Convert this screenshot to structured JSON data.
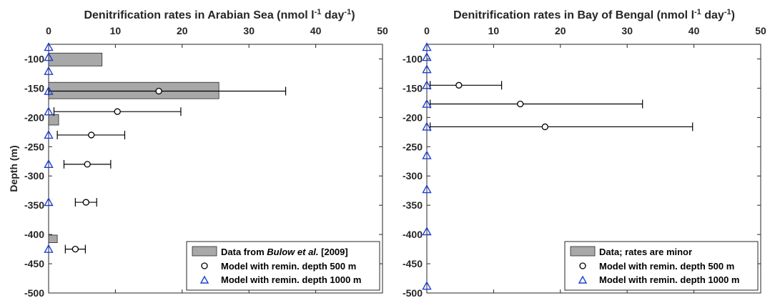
{
  "chart_data": [
    {
      "type": "bar",
      "orientation": "horizontal",
      "title": "Denitrification rates in Arabian Sea (nmol l",
      "title_sup": "-1",
      "title_mid": " day",
      "title_sup2": "-1",
      "title_end": ")",
      "ylabel": "Depth (m)",
      "xlim": [
        0,
        50
      ],
      "ylim": [
        -500,
        -75
      ],
      "x_axis_location": "top",
      "xticks": [
        "0",
        "10",
        "20",
        "30",
        "40",
        "50"
      ],
      "yticks": [
        "-100",
        "-150",
        "-200",
        "-250",
        "-300",
        "-350",
        "-400",
        "-450",
        "-500"
      ],
      "legend_location": "bottom-right",
      "colors": {
        "bar": "#a8a8a8",
        "model_500": "#000000",
        "model_1000": "#1f3fd6"
      },
      "series": [
        {
          "name": "Data from Bulow et al. [2009]",
          "kind": "bar",
          "bars": [
            {
              "depth_top": -90,
              "depth_bottom": -112,
              "value": 8
            },
            {
              "depth_top": -140,
              "depth_bottom": -168,
              "value": 25.5
            },
            {
              "depth_top": -195,
              "depth_bottom": -213,
              "value": 1.5
            },
            {
              "depth_top": -401,
              "depth_bottom": -414,
              "value": 1.3
            }
          ]
        },
        {
          "name": "Model with remin. depth 500 m",
          "kind": "errorbar",
          "points": [
            {
              "depth": -155,
              "mean": 16.5,
              "low": 0,
              "high": 35.5
            },
            {
              "depth": -190,
              "mean": 10.3,
              "low": 0.8,
              "high": 19.8
            },
            {
              "depth": -230,
              "mean": 6.4,
              "low": 1.3,
              "high": 11.4
            },
            {
              "depth": -280,
              "mean": 5.8,
              "low": 2.3,
              "high": 9.3
            },
            {
              "depth": -345,
              "mean": 5.6,
              "low": 4.0,
              "high": 7.2
            },
            {
              "depth": -425,
              "mean": 4.0,
              "low": 2.5,
              "high": 5.5
            }
          ]
        },
        {
          "name": "Model with remin. depth 1000 m",
          "kind": "scatter",
          "points": [
            {
              "depth": -80,
              "value": 0
            },
            {
              "depth": -97,
              "value": 0
            },
            {
              "depth": -121,
              "value": 0
            },
            {
              "depth": -155,
              "value": 0
            },
            {
              "depth": -190,
              "value": 0
            },
            {
              "depth": -230,
              "value": 0
            },
            {
              "depth": -280,
              "value": 0
            },
            {
              "depth": -345,
              "value": 0
            },
            {
              "depth": -425,
              "value": 0
            }
          ]
        }
      ],
      "legend": {
        "bar_prefix": "Data from ",
        "bar_italic": "Bulow et al.",
        "bar_suffix": " [2009]",
        "circle": "Model with remin. depth 500 m",
        "triangle": "Model with remin. depth 1000 m"
      }
    },
    {
      "type": "scatter",
      "title": "Denitrification rates in Bay of Bengal (nmol l",
      "title_sup": "-1",
      "title_mid": " day",
      "title_sup2": "-1",
      "title_end": ")",
      "ylabel": "",
      "xlim": [
        0,
        50
      ],
      "ylim": [
        -500,
        -75
      ],
      "x_axis_location": "top",
      "xticks": [
        "0",
        "10",
        "20",
        "30",
        "40",
        "50"
      ],
      "yticks": [
        "-100",
        "-150",
        "-200",
        "-250",
        "-300",
        "-350",
        "-400",
        "-450",
        "-500"
      ],
      "legend_location": "bottom-right",
      "colors": {
        "bar": "#a8a8a8",
        "model_500": "#000000",
        "model_1000": "#1f3fd6"
      },
      "series": [
        {
          "name": "Data; rates are minor",
          "kind": "bar",
          "bars": []
        },
        {
          "name": "Model with remin. depth 500 m",
          "kind": "errorbar",
          "points": [
            {
              "depth": -145,
              "mean": 4.8,
              "low": 0.5,
              "high": 11.2
            },
            {
              "depth": -177,
              "mean": 14.0,
              "low": 0.5,
              "high": 32.3
            },
            {
              "depth": -216,
              "mean": 17.7,
              "low": 0.5,
              "high": 39.8
            }
          ]
        },
        {
          "name": "Model with remin. depth 1000 m",
          "kind": "scatter",
          "points": [
            {
              "depth": -80,
              "value": 0
            },
            {
              "depth": -97,
              "value": 0
            },
            {
              "depth": -118,
              "value": 0
            },
            {
              "depth": -145,
              "value": 0
            },
            {
              "depth": -177,
              "value": 0
            },
            {
              "depth": -216,
              "value": 0
            },
            {
              "depth": -265,
              "value": 0
            },
            {
              "depth": -323,
              "value": 0
            },
            {
              "depth": -395,
              "value": 0
            },
            {
              "depth": -488,
              "value": 0
            }
          ]
        }
      ],
      "legend": {
        "bar_prefix": "Data; rates are minor",
        "bar_italic": "",
        "bar_suffix": "",
        "circle": "Model with remin. depth 500 m",
        "triangle": "Model with remin. depth 1000 m"
      }
    }
  ]
}
